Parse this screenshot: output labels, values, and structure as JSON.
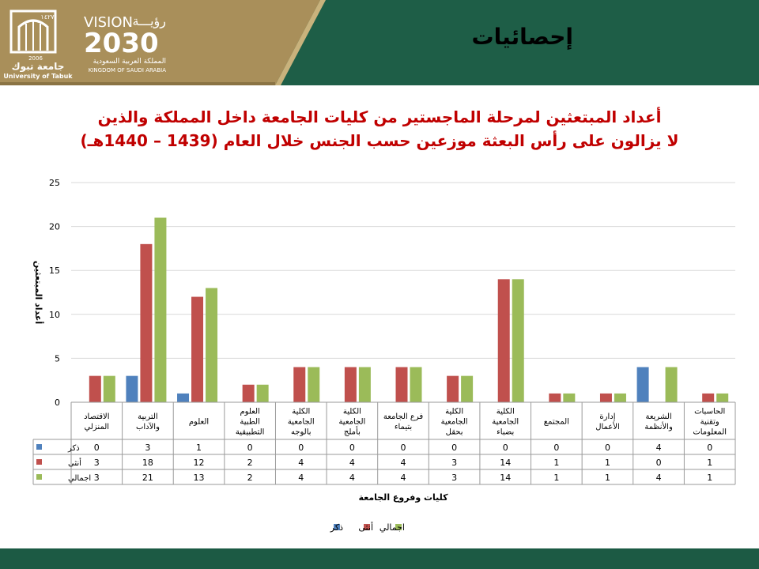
{
  "header": {
    "title": "إحصائيات",
    "logo_text_ar": "جامعة تبوك",
    "logo_text_en": "University of Tabuk",
    "logo_year": "2006",
    "logo_hijri": "١٤٢٧",
    "vision_word": "VISION",
    "vision_word_ar": "رؤيـــة",
    "vision_year": "2030",
    "vision_sub_ar": "المملكة العربية السعودية",
    "vision_sub_en": "KINGDOM OF SAUDI ARABIA"
  },
  "colors": {
    "banner_green": "#1e5e47",
    "banner_gold": "#a98f5a",
    "title_red": "#c00000",
    "male": "#4f81bd",
    "female": "#c0504d",
    "total": "#9bbb59"
  },
  "chart_data": {
    "type": "bar",
    "title_line1": "أعداد المبتعثين لمرحلة الماجستير من كليات الجامعة داخل المملكة والذين",
    "title_line2": "لا يزالون على رأس البعثة موزعين حسب الجنس خلال العام (1439 – 1440هـ)",
    "xlabel": "كليات وفروع الجامعة",
    "ylabel": "أعداد المبتعثين",
    "ylim": [
      0,
      25
    ],
    "yticks": [
      0,
      5,
      10,
      15,
      20,
      25
    ],
    "grid": true,
    "legend_position": "bottom",
    "categories": [
      "الاقتصاد المنزلي",
      "التربية والآداب",
      "العلوم",
      "العلوم الطبية التطبيقية",
      "الكلية الجامعية بالوجه",
      "الكلية الجامعية بأملج",
      "فرع الجامعة بتيماء",
      "الكلية الجامعية بحقل",
      "الكلية الجامعية بضباء",
      "المجتمع",
      "إدارة الأعمال",
      "الشريعة والأنظمة",
      "الحاسبات وتقنية المعلومات"
    ],
    "series": [
      {
        "name": "ذكر",
        "values": [
          0,
          3,
          1,
          0,
          0,
          0,
          0,
          0,
          0,
          0,
          0,
          4,
          0
        ]
      },
      {
        "name": "أنثى",
        "values": [
          3,
          18,
          12,
          2,
          4,
          4,
          4,
          3,
          14,
          1,
          1,
          0,
          1
        ]
      },
      {
        "name": "اجمالي",
        "values": [
          3,
          21,
          13,
          2,
          4,
          4,
          4,
          3,
          14,
          1,
          1,
          4,
          1
        ]
      }
    ]
  }
}
